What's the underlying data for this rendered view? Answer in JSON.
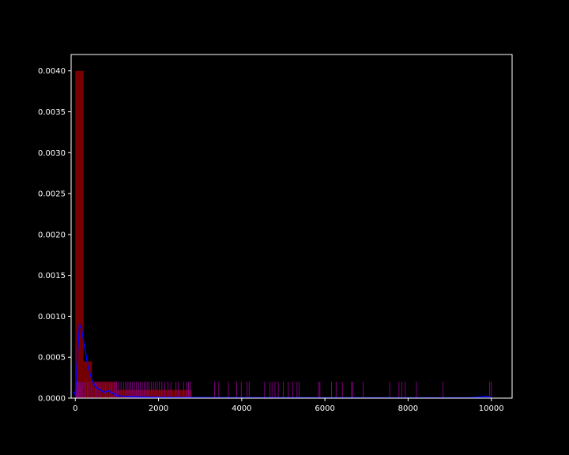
{
  "chart_data": {
    "type": "bar",
    "title": "",
    "xlabel": "",
    "ylabel": "",
    "xlim": [
      -100,
      10500
    ],
    "ylim": [
      0,
      0.0042
    ],
    "grid": false,
    "legend": "none",
    "x_ticks": [
      "0",
      "2000",
      "4000",
      "6000",
      "8000",
      "10000"
    ],
    "y_ticks": [
      "0.0000",
      "0.0005",
      "0.0010",
      "0.0015",
      "0.0020",
      "0.0025",
      "0.0030",
      "0.0035",
      "0.0040"
    ],
    "colors": {
      "background": "#000000",
      "axes": "#ffffff",
      "hist": "#8b0000",
      "rug": "#800080",
      "kde": "#0000ff"
    },
    "histogram": {
      "bin_edges": [
        0,
        200,
        400,
        600,
        800,
        1000,
        1200,
        1400,
        1600,
        1800,
        2000,
        2200,
        2400,
        2600,
        2800
      ],
      "density": [
        0.004,
        0.00045,
        0.0002,
        0.0002,
        0.0002,
        0.0001,
        0.0001,
        0.0001,
        0.0001,
        0.0001,
        0.0001,
        0.0001,
        0.0001,
        0.0001
      ]
    },
    "rug": {
      "height": 0.0002,
      "values": [
        10,
        25,
        40,
        60,
        85,
        110,
        140,
        170,
        210,
        250,
        290,
        330,
        380,
        430,
        480,
        520,
        570,
        620,
        680,
        730,
        780,
        830,
        880,
        940,
        990,
        1040,
        1100,
        1160,
        1210,
        1250,
        1290,
        1330,
        1370,
        1420,
        1470,
        1520,
        1560,
        1610,
        1660,
        1700,
        1740,
        1780,
        1830,
        1880,
        1920,
        1970,
        2020,
        2080,
        2150,
        2230,
        2300,
        2420,
        2480,
        2600,
        2680,
        2720,
        2760,
        3350,
        3450,
        3680,
        3880,
        3990,
        4130,
        4180,
        4550,
        4680,
        4730,
        4800,
        4880,
        5000,
        5120,
        5230,
        5330,
        5380,
        5850,
        5880,
        6160,
        6270,
        6420,
        6640,
        6670,
        6920,
        7560,
        7780,
        7850,
        7930,
        8200,
        8840,
        9960,
        10000
      ]
    },
    "kde": {
      "x": [
        -50,
        0,
        50,
        100,
        150,
        200,
        250,
        300,
        400,
        500,
        600,
        700,
        800,
        900,
        1000,
        1200,
        1500,
        2000,
        2500,
        3000,
        4000,
        6000,
        8000,
        9500,
        9900,
        10000
      ],
      "y": [
        8e-05,
        4e-05,
        0.0005,
        0.0009,
        0.00085,
        0.0007,
        0.00055,
        0.0004,
        0.00022,
        0.00013,
        0.0001,
        7e-05,
        9e-05,
        6e-05,
        3e-05,
        2e-05,
        1.5e-05,
        1e-05,
        8e-06,
        6e-06,
        5e-06,
        4e-06,
        4e-06,
        4e-06,
        2e-05,
        5e-06
      ]
    }
  }
}
